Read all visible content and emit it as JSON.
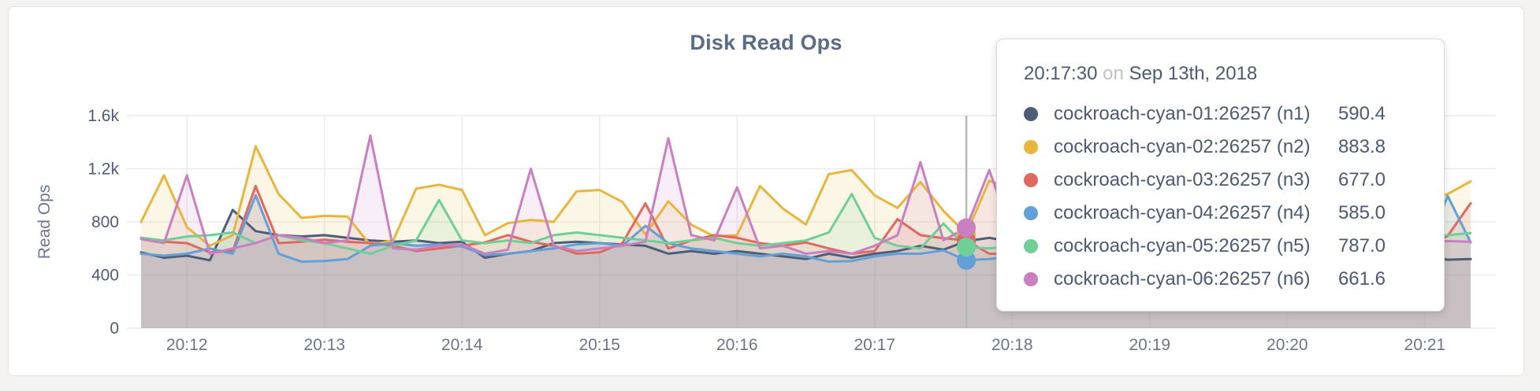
{
  "card": {
    "title": "Disk Read Ops"
  },
  "tooltip": {
    "time": "20:17:30",
    "conjunction": "on",
    "date": "Sep 13th, 2018"
  },
  "hover": {
    "display_time": "20:17:30",
    "seconds_from_start": 360,
    "snap_index": 36,
    "line_color": "#b5b8ba"
  },
  "chart_data": {
    "type": "line",
    "title": "Disk Read Ops",
    "ylabel": "Read Ops",
    "ylim": [
      0,
      1600
    ],
    "grid": true,
    "x_start_label": "20:11:40",
    "x_step_seconds": 10,
    "x_total_seconds": 580,
    "y_ticks": [
      {
        "label": "0",
        "value": 0
      },
      {
        "label": "400",
        "value": 400
      },
      {
        "label": "800",
        "value": 800
      },
      {
        "label": "1.2k",
        "value": 1200
      },
      {
        "label": "1.6k",
        "value": 1600
      }
    ],
    "x_ticks": [
      {
        "label": "20:12",
        "seconds": 20
      },
      {
        "label": "20:13",
        "seconds": 80
      },
      {
        "label": "20:14",
        "seconds": 140
      },
      {
        "label": "20:15",
        "seconds": 200
      },
      {
        "label": "20:16",
        "seconds": 260
      },
      {
        "label": "20:17",
        "seconds": 320
      },
      {
        "label": "20:18",
        "seconds": 380
      },
      {
        "label": "20:19",
        "seconds": 440
      },
      {
        "label": "20:20",
        "seconds": 500
      },
      {
        "label": "20:21",
        "seconds": 560
      }
    ],
    "series": [
      {
        "name": "cockroach-cyan-01:26257 (n1)",
        "node": "n1",
        "color": "#4f5e78",
        "tooltip_value": "590.4",
        "values": [
          570,
          530,
          545,
          510,
          890,
          730,
          700,
          690,
          700,
          680,
          660,
          650,
          660,
          640,
          650,
          530,
          560,
          580,
          640,
          650,
          640,
          630,
          620,
          560,
          580,
          560,
          580,
          560,
          540,
          520,
          560,
          530,
          560,
          580,
          620,
          590.4,
          655,
          680,
          650,
          600,
          560,
          540,
          530,
          545,
          560,
          540,
          520,
          545,
          560,
          580,
          550,
          540,
          560,
          520,
          490,
          540,
          540,
          515,
          520
        ]
      },
      {
        "name": "cockroach-cyan-02:26257 (n2)",
        "node": "n2",
        "color": "#e8b63c",
        "tooltip_value": "883.8",
        "values": [
          800,
          1150,
          760,
          620,
          700,
          1370,
          1010,
          830,
          845,
          840,
          625,
          660,
          1050,
          1080,
          1040,
          700,
          790,
          815,
          800,
          1030,
          1040,
          950,
          705,
          955,
          780,
          690,
          700,
          1070,
          900,
          780,
          1160,
          1190,
          1000,
          905,
          1100,
          883.8,
          710,
          1110,
          1050,
          900,
          820,
          760,
          880,
          940,
          820,
          760,
          880,
          960,
          840,
          780,
          900,
          980,
          860,
          800,
          920,
          860,
          950,
          1010,
          1105
        ]
      },
      {
        "name": "cockroach-cyan-03:26257 (n3)",
        "node": "n3",
        "color": "#e0685f",
        "tooltip_value": "677.0",
        "values": [
          680,
          650,
          640,
          570,
          580,
          1070,
          640,
          650,
          665,
          650,
          640,
          620,
          580,
          600,
          620,
          645,
          700,
          650,
          620,
          560,
          570,
          640,
          940,
          600,
          660,
          700,
          680,
          640,
          620,
          645,
          600,
          560,
          580,
          820,
          700,
          677.0,
          660,
          560,
          555,
          600,
          640,
          600,
          660,
          620,
          580,
          640,
          600,
          660,
          620,
          580,
          640,
          680,
          620,
          660,
          600,
          640,
          600,
          695,
          940
        ]
      },
      {
        "name": "cockroach-cyan-04:26257 (n4)",
        "node": "n4",
        "color": "#62a0d8",
        "tooltip_value": "585.0",
        "values": [
          560,
          545,
          560,
          600,
          560,
          1000,
          560,
          500,
          505,
          520,
          620,
          640,
          620,
          630,
          615,
          550,
          560,
          580,
          600,
          630,
          640,
          620,
          770,
          640,
          600,
          580,
          560,
          540,
          560,
          540,
          500,
          505,
          540,
          560,
          560,
          585.0,
          510,
          520,
          540,
          560,
          580,
          540,
          520,
          560,
          540,
          520,
          560,
          580,
          540,
          560,
          520,
          540,
          560,
          540,
          560,
          580,
          560,
          995,
          645
        ]
      },
      {
        "name": "cockroach-cyan-05:26257 (n5)",
        "node": "n5",
        "color": "#6fcf97",
        "tooltip_value": "787.0",
        "values": [
          680,
          660,
          690,
          700,
          720,
          640,
          700,
          660,
          640,
          600,
          560,
          620,
          660,
          965,
          660,
          640,
          660,
          640,
          700,
          720,
          700,
          680,
          660,
          640,
          660,
          680,
          640,
          620,
          640,
          660,
          720,
          1010,
          680,
          620,
          600,
          787.0,
          610,
          600,
          620,
          660,
          640,
          680,
          660,
          640,
          660,
          680,
          640,
          660,
          680,
          660,
          640,
          660,
          680,
          660,
          640,
          660,
          680,
          700,
          715
        ]
      },
      {
        "name": "cockroach-cyan-06:26257 (n6)",
        "node": "n6",
        "color": "#ca7fc0",
        "tooltip_value": "661.6",
        "values": [
          670,
          640,
          1150,
          560,
          600,
          640,
          700,
          680,
          640,
          660,
          1450,
          600,
          590,
          620,
          630,
          560,
          590,
          1200,
          620,
          580,
          600,
          620,
          650,
          1430,
          700,
          660,
          1060,
          600,
          620,
          560,
          580,
          560,
          620,
          700,
          1250,
          661.6,
          755,
          1190,
          700,
          640,
          620,
          660,
          640,
          620,
          660,
          640,
          620,
          660,
          640,
          620,
          660,
          640,
          620,
          660,
          640,
          620,
          640,
          655,
          650
        ]
      }
    ]
  }
}
